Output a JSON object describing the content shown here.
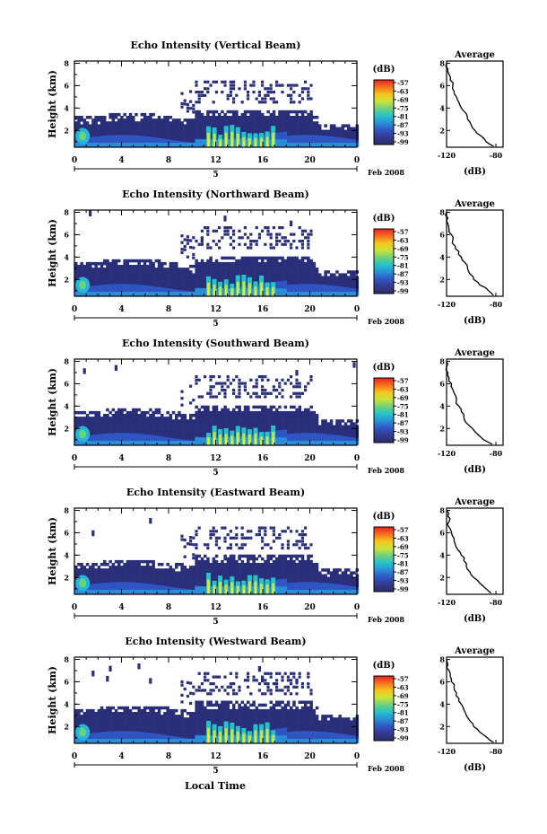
{
  "figure": {
    "x_axis_title": "Local Time",
    "date_label": "Feb 2008",
    "day_label": "5",
    "avg_title": "Average",
    "avg_xlabel": "(dB)",
    "cb_unit": "(dB)",
    "ylabel": "Height (km)"
  },
  "colors": {
    "background": "#ffffff",
    "echo_low": "#2a2f7a",
    "echo_mid": "#23b8d8",
    "echo_high": "#f4e830",
    "echo_peak": "#e83020"
  },
  "colorbar": {
    "ticks": [
      "-57",
      "-63",
      "-69",
      "-75",
      "-81",
      "-87",
      "-93",
      "-99"
    ],
    "stops": [
      "#e8231e",
      "#f6701f",
      "#f7c51f",
      "#c9e43a",
      "#6fd07a",
      "#23c4c8",
      "#2a8fd8",
      "#2f55c4",
      "#35398e",
      "#2b2f6a"
    ]
  },
  "chart_data": [
    {
      "type": "heatmap",
      "title": "Echo Intensity (Vertical Beam)",
      "ylabel": "Height (km)",
      "xlabel": "",
      "x_ticks": [
        "0",
        "4",
        "8",
        "12",
        "16",
        "20",
        "0"
      ],
      "y_ticks": [
        "2",
        "4",
        "6",
        "8"
      ],
      "xlim": [
        0,
        24
      ],
      "ylim": [
        0.5,
        8.2
      ],
      "colorbar_range_db": [
        -99,
        -57
      ],
      "echo_top_km": 3.5,
      "average_profile": {
        "xlim": [
          -120,
          -80
        ],
        "x_ticks": [
          "-120",
          "-80"
        ],
        "y_ticks": [
          "2",
          "4",
          "6",
          "8"
        ],
        "height_km": [
          0.6,
          1.0,
          1.5,
          2.0,
          2.5,
          3.0,
          3.5,
          4.0,
          4.5,
          5.0,
          5.5,
          6.0,
          6.5,
          7.0,
          7.5,
          8.0
        ],
        "value_db": [
          -82,
          -88,
          -92,
          -97,
          -100,
          -103,
          -104,
          -108,
          -110,
          -112,
          -114,
          -115,
          -117,
          -118,
          -119,
          -120
        ]
      }
    },
    {
      "type": "heatmap",
      "title": "Echo Intensity (Northward Beam)",
      "ylabel": "Height (km)",
      "xlabel": "",
      "x_ticks": [
        "0",
        "4",
        "8",
        "12",
        "16",
        "20",
        "0"
      ],
      "y_ticks": [
        "2",
        "4",
        "6",
        "8"
      ],
      "xlim": [
        0,
        24
      ],
      "ylim": [
        0.5,
        8.2
      ],
      "colorbar_range_db": [
        -99,
        -57
      ],
      "echo_top_km": 3.8,
      "average_profile": {
        "xlim": [
          -120,
          -80
        ],
        "x_ticks": [
          "-120",
          "-80"
        ],
        "y_ticks": [
          "2",
          "4",
          "6",
          "8"
        ],
        "height_km": [
          0.6,
          1.0,
          1.5,
          2.0,
          2.5,
          3.0,
          3.5,
          4.0,
          4.5,
          5.0,
          5.5,
          6.0,
          6.5,
          7.0,
          7.5,
          8.0
        ],
        "value_db": [
          -82,
          -86,
          -93,
          -98,
          -101,
          -103,
          -105,
          -108,
          -110,
          -113,
          -115,
          -116,
          -118,
          -119,
          -119,
          -120
        ]
      }
    },
    {
      "type": "heatmap",
      "title": "Echo Intensity (Southward Beam)",
      "ylabel": "Height (km)",
      "xlabel": "",
      "x_ticks": [
        "0",
        "4",
        "8",
        "12",
        "16",
        "20",
        "0"
      ],
      "y_ticks": [
        "2",
        "4",
        "6",
        "8"
      ],
      "xlim": [
        0,
        24
      ],
      "ylim": [
        0.5,
        8.2
      ],
      "colorbar_range_db": [
        -99,
        -57
      ],
      "echo_top_km": 3.8,
      "average_profile": {
        "xlim": [
          -120,
          -80
        ],
        "x_ticks": [
          "-120",
          "-80"
        ],
        "y_ticks": [
          "2",
          "4",
          "6",
          "8"
        ],
        "height_km": [
          0.6,
          1.0,
          1.5,
          2.0,
          2.5,
          3.0,
          3.5,
          4.0,
          4.5,
          5.0,
          5.5,
          6.0,
          6.5,
          7.0,
          7.5,
          8.0
        ],
        "value_db": [
          -83,
          -90,
          -95,
          -99,
          -104,
          -106,
          -108,
          -110,
          -112,
          -113,
          -115,
          -116,
          -118,
          -119,
          -120,
          -120
        ]
      }
    },
    {
      "type": "heatmap",
      "title": "Echo Intensity (Eastward Beam)",
      "ylabel": "Height (km)",
      "xlabel": "",
      "x_ticks": [
        "0",
        "4",
        "8",
        "12",
        "16",
        "20",
        "0"
      ],
      "y_ticks": [
        "2",
        "4",
        "6",
        "8"
      ],
      "xlim": [
        0,
        24
      ],
      "ylim": [
        0.5,
        8.2
      ],
      "colorbar_range_db": [
        -99,
        -57
      ],
      "echo_top_km": 3.6,
      "average_profile": {
        "xlim": [
          -120,
          -80
        ],
        "x_ticks": [
          "-120",
          "-80"
        ],
        "y_ticks": [
          "2",
          "4",
          "6",
          "8"
        ],
        "height_km": [
          0.6,
          1.0,
          1.5,
          2.0,
          2.5,
          3.0,
          3.5,
          4.0,
          4.5,
          5.0,
          5.5,
          6.0,
          6.5,
          7.0,
          7.5,
          8.0
        ],
        "value_db": [
          -84,
          -88,
          -93,
          -98,
          -101,
          -104,
          -106,
          -108,
          -111,
          -113,
          -114,
          -116,
          -118,
          -118,
          -119,
          -120
        ]
      }
    },
    {
      "type": "heatmap",
      "title": "Echo Intensity (Westward Beam)",
      "ylabel": "Height (km)",
      "xlabel": "Local Time",
      "x_ticks": [
        "0",
        "4",
        "8",
        "12",
        "16",
        "20",
        "0"
      ],
      "y_ticks": [
        "2",
        "4",
        "6",
        "8"
      ],
      "xlim": [
        0,
        24
      ],
      "ylim": [
        0.5,
        8.2
      ],
      "colorbar_range_db": [
        -99,
        -57
      ],
      "echo_top_km": 3.9,
      "average_profile": {
        "xlim": [
          -120,
          -80
        ],
        "x_ticks": [
          "-120",
          "-80"
        ],
        "y_ticks": [
          "2",
          "4",
          "6",
          "8"
        ],
        "height_km": [
          0.6,
          1.0,
          1.5,
          2.0,
          2.5,
          3.0,
          3.5,
          4.0,
          4.5,
          5.0,
          5.5,
          6.0,
          6.5,
          7.0,
          7.5,
          8.0
        ],
        "value_db": [
          -82,
          -87,
          -93,
          -98,
          -101,
          -104,
          -106,
          -108,
          -110,
          -112,
          -114,
          -116,
          -117,
          -118,
          -119,
          -120
        ]
      }
    }
  ]
}
